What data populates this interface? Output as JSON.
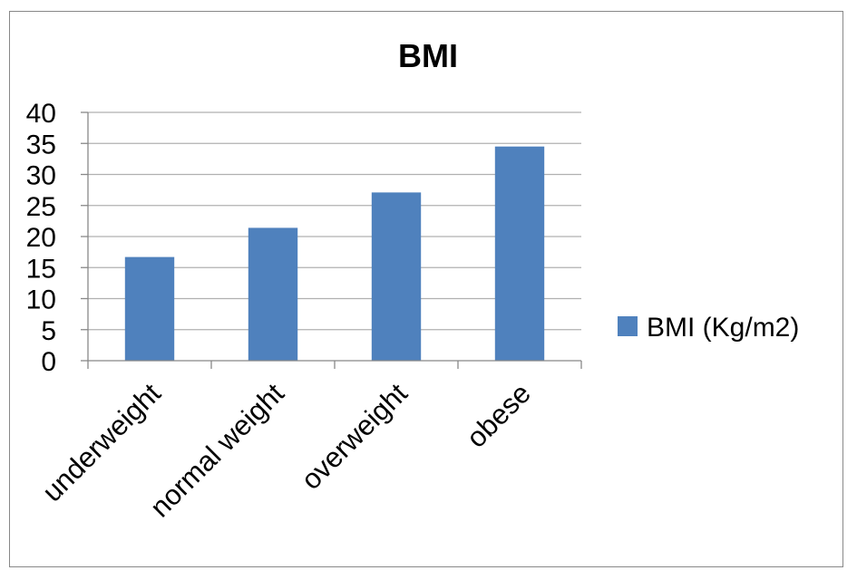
{
  "chart_data": {
    "type": "bar",
    "title": "BMI",
    "categories": [
      "underweight",
      "normal weight",
      "overweight",
      "obese"
    ],
    "series": [
      {
        "name": "BMI (Kg/m2)",
        "values": [
          16.7,
          21.4,
          27.1,
          34.5
        ],
        "color": "#4f81bd"
      }
    ],
    "ylim": [
      0,
      40
    ],
    "yticks": [
      0,
      5,
      10,
      15,
      20,
      25,
      30,
      35,
      40
    ],
    "grid": true,
    "legend": "right"
  }
}
